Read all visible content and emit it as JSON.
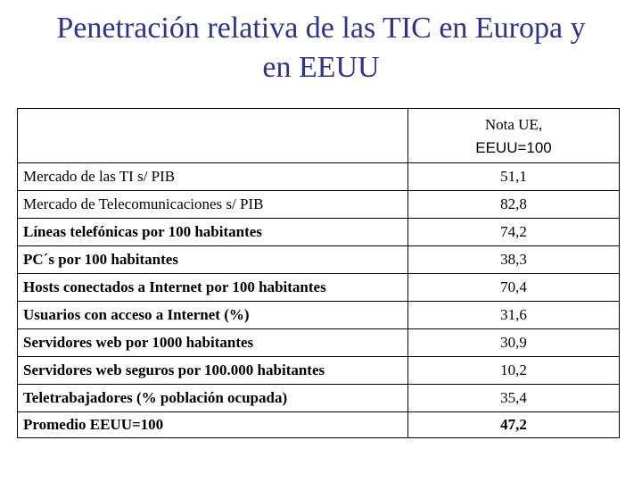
{
  "title": {
    "line1": "Penetración relativa de las TIC en Europa y",
    "line2": "en EEUU"
  },
  "table": {
    "header": {
      "label": "",
      "value_line1": "Nota UE,",
      "value_line2": "EEUU=100"
    },
    "rows": [
      {
        "label": "Mercado de las TI s/ PIB",
        "value": "51,1",
        "bold": false
      },
      {
        "label": "Mercado de Telecomunicaciones s/ PIB",
        "value": "82,8",
        "bold": false
      },
      {
        "label": "Líneas telefónicas por 100 habitantes",
        "value": "74,2",
        "bold": true
      },
      {
        "label": "PC´s por 100 habitantes",
        "value": "38,3",
        "bold": true
      },
      {
        "label": "Hosts conectados a Internet por 100 habitantes",
        "value": "70,4",
        "bold": true
      },
      {
        "label": "Usuarios con acceso a Internet (%)",
        "value": "31,6",
        "bold": true
      },
      {
        "label": "Servidores web por 1000 habitantes",
        "value": "30,9",
        "bold": true
      },
      {
        "label": "Servidores web seguros por 100.000 habitantes",
        "value": "10,2",
        "bold": true
      },
      {
        "label": "Teletrabajadores (% población ocupada)",
        "value": "35,4",
        "bold": true
      }
    ],
    "footer": {
      "label": "Promedio EEUU=100",
      "value": "47,2"
    }
  }
}
